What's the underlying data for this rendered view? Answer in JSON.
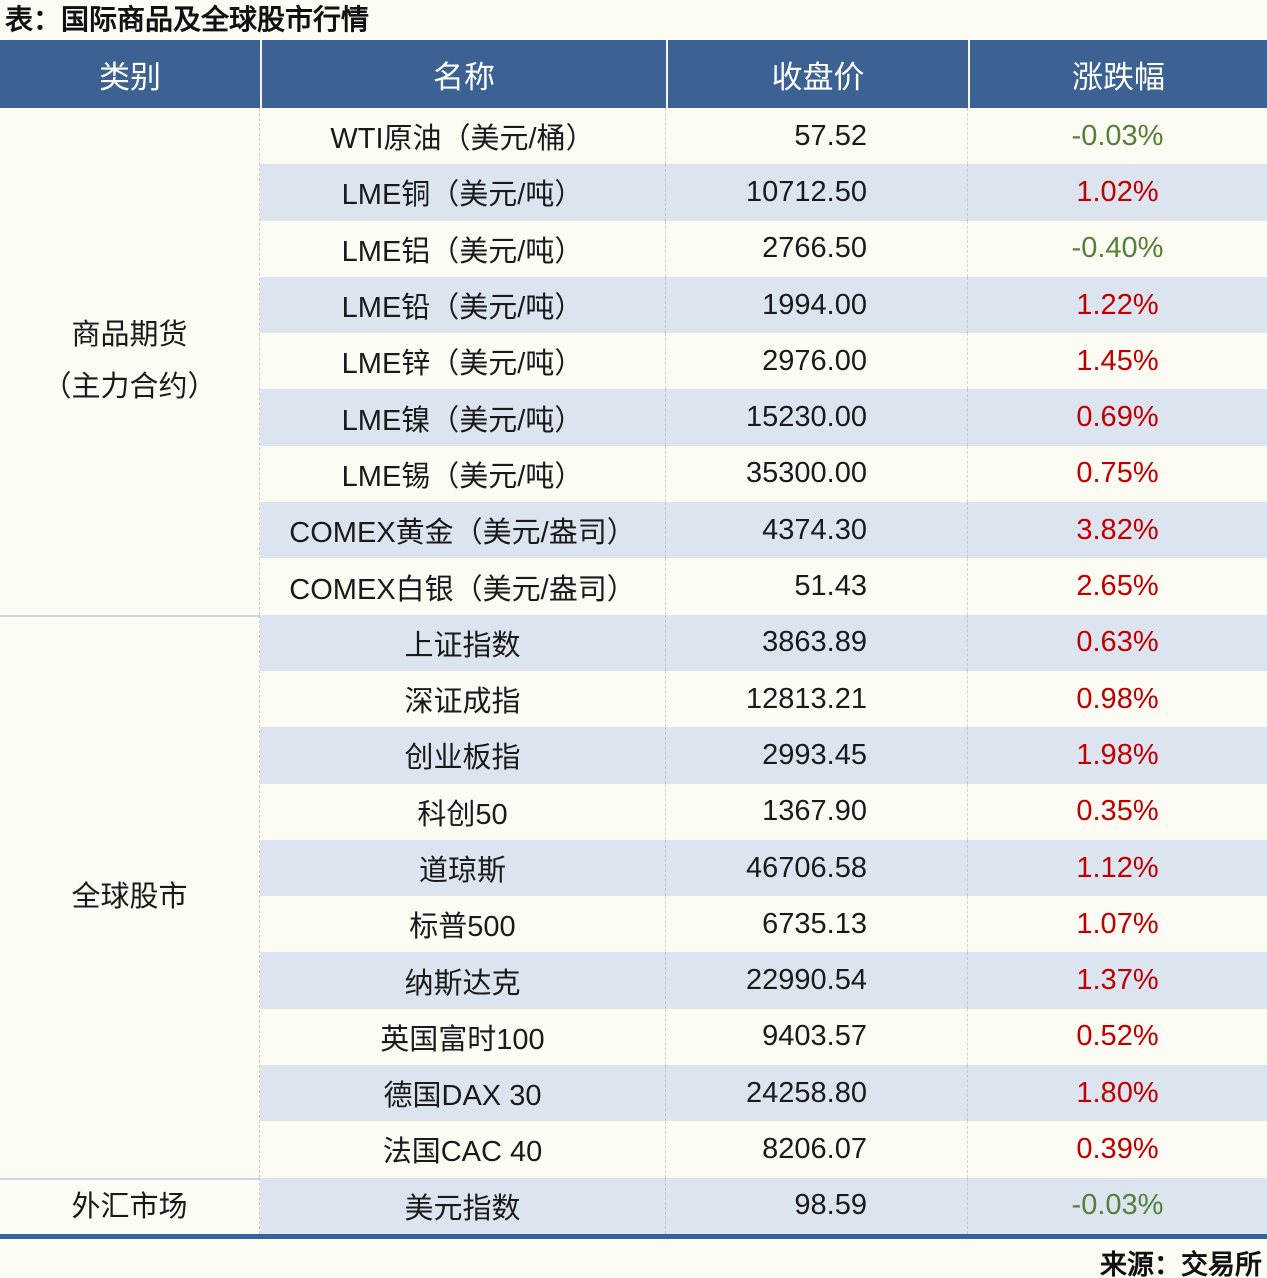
{
  "title": "表：国际商品及全球股市行情",
  "source": "来源：交易所",
  "colors": {
    "header_bg": "#3b6292",
    "header_text": "#ffffff",
    "stripe_bg": "#dce4f0",
    "row_bg": "#fdfcf4",
    "up": "#c00000",
    "down": "#538135",
    "text": "#1a1a1a",
    "bottom_border": "#35639b",
    "section_divider": "#c9d5e7"
  },
  "table": {
    "headers": [
      "类别",
      "名称",
      "收盘价",
      "涨跌幅"
    ],
    "sections": [
      {
        "category": "商品期货（主力合约）",
        "category_lines": [
          "商品期货",
          "（主力合约）"
        ],
        "rows": [
          {
            "name": "WTI原油（美元/桶）",
            "close": "57.52",
            "change": "-0.03%"
          },
          {
            "name": "LME铜（美元/吨）",
            "close": "10712.50",
            "change": "1.02%"
          },
          {
            "name": "LME铝（美元/吨）",
            "close": "2766.50",
            "change": "-0.40%"
          },
          {
            "name": "LME铅（美元/吨）",
            "close": "1994.00",
            "change": "1.22%"
          },
          {
            "name": "LME锌（美元/吨）",
            "close": "2976.00",
            "change": "1.45%"
          },
          {
            "name": "LME镍（美元/吨）",
            "close": "15230.00",
            "change": "0.69%"
          },
          {
            "name": "LME锡（美元/吨）",
            "close": "35300.00",
            "change": "0.75%"
          },
          {
            "name": "COMEX黄金（美元/盎司）",
            "close": "4374.30",
            "change": "3.82%"
          },
          {
            "name": "COMEX白银（美元/盎司）",
            "close": "51.43",
            "change": "2.65%"
          }
        ]
      },
      {
        "category": "全球股市",
        "category_lines": [
          "全球股市"
        ],
        "rows": [
          {
            "name": "上证指数",
            "close": "3863.89",
            "change": "0.63%"
          },
          {
            "name": "深证成指",
            "close": "12813.21",
            "change": "0.98%"
          },
          {
            "name": "创业板指",
            "close": "2993.45",
            "change": "1.98%"
          },
          {
            "name": "科创50",
            "close": "1367.90",
            "change": "0.35%"
          },
          {
            "name": "道琼斯",
            "close": "46706.58",
            "change": "1.12%"
          },
          {
            "name": "标普500",
            "close": "6735.13",
            "change": "1.07%"
          },
          {
            "name": "纳斯达克",
            "close": "22990.54",
            "change": "1.37%"
          },
          {
            "name": "英国富时100",
            "close": "9403.57",
            "change": "0.52%"
          },
          {
            "name": "德国DAX 30",
            "close": "24258.80",
            "change": "1.80%"
          },
          {
            "name": "法国CAC 40",
            "close": "8206.07",
            "change": "0.39%"
          }
        ]
      },
      {
        "category": "外汇市场",
        "category_lines": [
          "外汇市场"
        ],
        "rows": [
          {
            "name": "美元指数",
            "close": "98.59",
            "change": "-0.03%"
          }
        ]
      }
    ]
  },
  "chart_data": {
    "type": "table",
    "title": "表：国际商品及全球股市行情",
    "source": "来源：交易所",
    "columns": [
      "类别",
      "名称",
      "收盘价",
      "涨跌幅"
    ],
    "rows": [
      [
        "商品期货（主力合约）",
        "WTI原油（美元/桶）",
        57.52,
        "-0.03%"
      ],
      [
        "商品期货（主力合约）",
        "LME铜（美元/吨）",
        10712.5,
        "1.02%"
      ],
      [
        "商品期货（主力合约）",
        "LME铝（美元/吨）",
        2766.5,
        "-0.40%"
      ],
      [
        "商品期货（主力合约）",
        "LME铅（美元/吨）",
        1994.0,
        "1.22%"
      ],
      [
        "商品期货（主力合约）",
        "LME锌（美元/吨）",
        2976.0,
        "1.45%"
      ],
      [
        "商品期货（主力合约）",
        "LME镍（美元/吨）",
        15230.0,
        "0.69%"
      ],
      [
        "商品期货（主力合约）",
        "LME锡（美元/吨）",
        35300.0,
        "0.75%"
      ],
      [
        "商品期货（主力合约）",
        "COMEX黄金（美元/盎司）",
        4374.3,
        "3.82%"
      ],
      [
        "商品期货（主力合约）",
        "COMEX白银（美元/盎司）",
        51.43,
        "2.65%"
      ],
      [
        "全球股市",
        "上证指数",
        3863.89,
        "0.63%"
      ],
      [
        "全球股市",
        "深证成指",
        12813.21,
        "0.98%"
      ],
      [
        "全球股市",
        "创业板指",
        2993.45,
        "1.98%"
      ],
      [
        "全球股市",
        "科创50",
        1367.9,
        "0.35%"
      ],
      [
        "全球股市",
        "道琼斯",
        46706.58,
        "1.12%"
      ],
      [
        "全球股市",
        "标普500",
        6735.13,
        "1.07%"
      ],
      [
        "全球股市",
        "纳斯达克",
        22990.54,
        "1.37%"
      ],
      [
        "全球股市",
        "英国富时100",
        9403.57,
        "0.52%"
      ],
      [
        "全球股市",
        "德国DAX 30",
        24258.8,
        "1.80%"
      ],
      [
        "全球股市",
        "法国CAC 40",
        8206.07,
        "0.39%"
      ],
      [
        "外汇市场",
        "美元指数",
        98.59,
        "-0.03%"
      ]
    ],
    "notes": "负值为绿色，正值为红色；行底色白与浅蓝交替"
  }
}
